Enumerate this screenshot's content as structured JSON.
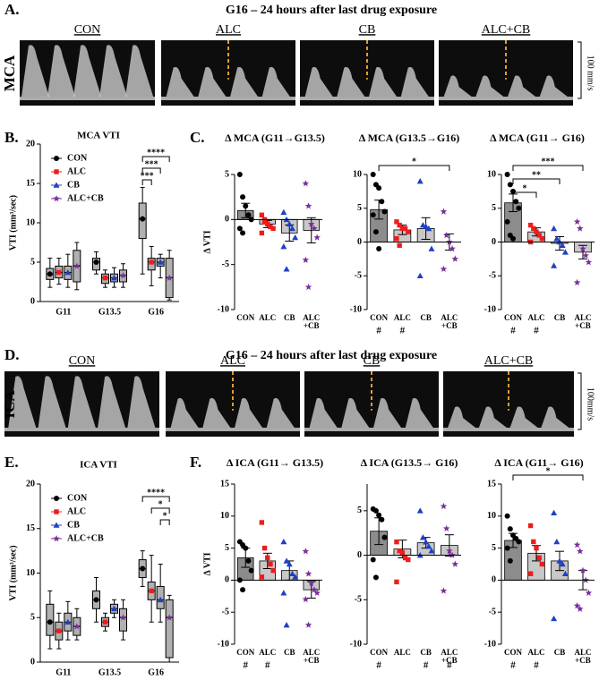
{
  "figure": {
    "A": {
      "letter": "A.",
      "title": "G16 – 24 hours after last drug exposure",
      "vessel": "MCA",
      "scale": "100 mm/s",
      "groups": [
        "CON",
        "ALC",
        "CB",
        "ALC+CB"
      ]
    },
    "D": {
      "letter": "D.",
      "title": "G16 – 24 hours after last drug exposure",
      "vessel": "ICA",
      "scale": "100mm/s",
      "groups": [
        "CON",
        "ALC",
        "CB",
        "ALC+CB"
      ]
    },
    "letters": {
      "B": "B.",
      "C": "C.",
      "E": "E.",
      "F": "F."
    }
  },
  "chart_data": [
    {
      "type": "box",
      "title": "MCA VTI",
      "ylabel": "VTI (mm³/sec)",
      "categories": [
        "G11",
        "G13.5",
        "G16"
      ],
      "series": [
        {
          "name": "CON",
          "color": "#000000",
          "marker": "circle",
          "values": [
            [
              1.8,
              2.8,
              3.5,
              4.2,
              5.5
            ],
            [
              3.5,
              4,
              5,
              5.5,
              6.3
            ],
            [
              3.5,
              8,
              10.5,
              12.5,
              14.5
            ]
          ]
        },
        {
          "name": "ALC",
          "color": "#ee1c1c",
          "marker": "square",
          "values": [
            [
              2.2,
              3,
              3.7,
              4.5,
              5.5
            ],
            [
              1.8,
              2.3,
              3,
              3.5,
              4
            ],
            [
              2,
              4,
              5,
              5.5,
              7
            ]
          ]
        },
        {
          "name": "CB",
          "color": "#1f3fc4",
          "marker": "triangle",
          "values": [
            [
              1.8,
              2.8,
              3.7,
              4.5,
              6
            ],
            [
              1.8,
              2.5,
              3,
              3.5,
              4.3
            ],
            [
              3,
              4.5,
              5,
              5.5,
              6
            ]
          ]
        },
        {
          "name": "ALC+CB",
          "color": "#7b2d9b",
          "marker": "star",
          "values": [
            [
              1.5,
              2.5,
              4.5,
              6.5,
              7.5
            ],
            [
              1.8,
              2.5,
              3.3,
              4,
              4.8
            ],
            [
              0.2,
              0.5,
              3,
              5.5,
              6.5
            ]
          ]
        }
      ],
      "ylim": [
        0,
        20
      ],
      "yticks": [
        0,
        5,
        10,
        15,
        20
      ],
      "brackets": [
        {
          "text": "***",
          "category": 2,
          "from": 0,
          "to": 1
        },
        {
          "text": "***",
          "category": 2,
          "from": 0,
          "to": 2
        },
        {
          "text": "****",
          "category": 2,
          "from": 0,
          "to": 3
        }
      ]
    },
    {
      "type": "bar_scatter",
      "title": "Δ MCA (G11→G13.5)",
      "ylabel": "Δ VTI",
      "categories": [
        "CON",
        "ALC",
        "CB",
        "ALC +CB"
      ],
      "values": [
        1,
        -0.5,
        -1.5,
        -1.2
      ],
      "errors": [
        0.8,
        0.4,
        0.9,
        1.4
      ],
      "points": [
        [
          5,
          2.5,
          1.5,
          0.5,
          0,
          -1,
          -1.5
        ],
        [
          0.5,
          0,
          -0.5,
          -0.8,
          -1,
          -1.5,
          -0.3
        ],
        [
          0.8,
          0,
          -0.5,
          -1,
          -2,
          -3,
          -5.5
        ],
        [
          4,
          1.5,
          -0.5,
          -1,
          -2,
          -4.5,
          -7.5
        ]
      ],
      "colors": [
        "#000000",
        "#ee1c1c",
        "#1f3fc4",
        "#7b2d9b"
      ],
      "bar_colors": [
        "#8c8c8c",
        "#c8c8c8",
        "#c8c8c8",
        "#c8c8c8"
      ],
      "markers": [
        "circle",
        "square",
        "triangle",
        "star"
      ],
      "ylim": [
        -10,
        5
      ],
      "yticks": [
        -10,
        -5,
        0,
        5
      ],
      "brackets": []
    },
    {
      "type": "bar_scatter",
      "title": "Δ MCA (G13.5→G16)",
      "categories": [
        "CON",
        "ALC",
        "CB",
        "ALC +CB"
      ],
      "values": [
        4.8,
        1.8,
        2,
        0
      ],
      "errors": [
        1.4,
        0.7,
        1.6,
        1.2
      ],
      "points": [
        [
          10,
          8.5,
          8,
          6,
          4.5,
          4,
          1.5,
          -1
        ],
        [
          3,
          2.5,
          2,
          2,
          1.5,
          0.5,
          -0.5
        ],
        [
          9,
          2.5,
          2.3,
          2,
          -1,
          -5
        ],
        [
          4.5,
          1,
          0,
          -1,
          -2.5,
          -4
        ]
      ],
      "colors": [
        "#000000",
        "#ee1c1c",
        "#1f3fc4",
        "#7b2d9b"
      ],
      "bar_colors": [
        "#8c8c8c",
        "#c8c8c8",
        "#c8c8c8",
        "#c8c8c8"
      ],
      "markers": [
        "circle",
        "square",
        "triangle",
        "star"
      ],
      "hash": [
        "#",
        "#",
        null,
        null
      ],
      "hash_color": "#2e9b2e",
      "ylim": [
        -10,
        10
      ],
      "yticks": [
        -10,
        -5,
        0,
        5,
        10
      ],
      "brackets": [
        {
          "text": "*",
          "from": 0,
          "to": 3
        }
      ]
    },
    {
      "type": "bar_scatter",
      "title": "Δ MCA (G11→ G16)",
      "categories": [
        "CON",
        "ALC",
        "CB",
        "ALC +CB"
      ],
      "values": [
        5.8,
        1.5,
        -0.2,
        -1.5
      ],
      "errors": [
        1.3,
        0.6,
        1,
        1
      ],
      "points": [
        [
          10,
          8.5,
          7.5,
          6,
          5,
          3,
          1,
          0.5
        ],
        [
          2.5,
          2,
          1.5,
          1,
          0.5,
          0
        ],
        [
          2,
          0.5,
          0,
          -0.5,
          -1.5,
          -3.5
        ],
        [
          3,
          2,
          -1,
          -2,
          -3,
          -6
        ]
      ],
      "colors": [
        "#000000",
        "#ee1c1c",
        "#1f3fc4",
        "#7b2d9b"
      ],
      "bar_colors": [
        "#8c8c8c",
        "#c8c8c8",
        "#c8c8c8",
        "#c8c8c8"
      ],
      "markers": [
        "circle",
        "square",
        "triangle",
        "star"
      ],
      "hash": [
        "#",
        "#",
        null,
        null
      ],
      "hash_color": "#2e9b2e",
      "ylim": [
        -10,
        10
      ],
      "yticks": [
        -10,
        -5,
        0,
        5,
        10
      ],
      "brackets": [
        {
          "text": "*",
          "from": 0,
          "to": 1
        },
        {
          "text": "**",
          "from": 0,
          "to": 2
        },
        {
          "text": "***",
          "from": 0,
          "to": 3
        }
      ]
    },
    {
      "type": "box",
      "title": "ICA VTI",
      "ylabel": "VTI (mm³/sec)",
      "categories": [
        "G11",
        "G13.5",
        "G16"
      ],
      "series": [
        {
          "name": "CON",
          "color": "#000000",
          "marker": "circle",
          "values": [
            [
              1.5,
              3,
              4.5,
              6.5,
              8
            ],
            [
              4.5,
              6,
              7,
              8,
              9.5
            ],
            [
              8.5,
              9.5,
              10.5,
              11.5,
              12.5
            ]
          ]
        },
        {
          "name": "ALC",
          "color": "#ee1c1c",
          "marker": "square",
          "values": [
            [
              1.5,
              2.5,
              3.5,
              4.5,
              5.5
            ],
            [
              3.5,
              4,
              4.5,
              5,
              5.5
            ],
            [
              4.5,
              7,
              8,
              9,
              12
            ]
          ]
        },
        {
          "name": "CB",
          "color": "#1f3fc4",
          "marker": "triangle",
          "values": [
            [
              2.5,
              3.5,
              4.5,
              5.5,
              6.8
            ],
            [
              5,
              5.5,
              6,
              6.5,
              7
            ],
            [
              4.5,
              6,
              7,
              8.5,
              11
            ]
          ]
        },
        {
          "name": "ALC+CB",
          "color": "#7b2d9b",
          "marker": "star",
          "values": [
            [
              2.5,
              3,
              4,
              5,
              6
            ],
            [
              2.5,
              3.5,
              5,
              6,
              7
            ],
            [
              0,
              0.5,
              5,
              7,
              7.5
            ]
          ]
        }
      ],
      "ylim": [
        0,
        20
      ],
      "yticks": [
        0,
        5,
        10,
        15,
        20
      ],
      "brackets": [
        {
          "text": "*",
          "category": 2,
          "from": 2,
          "to": 3
        },
        {
          "text": "*",
          "category": 2,
          "from": 1,
          "to": 3
        },
        {
          "text": "****",
          "category": 2,
          "from": 0,
          "to": 3
        }
      ]
    },
    {
      "type": "bar_scatter",
      "title": "Δ ICA (G11→ G13.5)",
      "ylabel": "Δ VTI",
      "categories": [
        "CON",
        "ALC",
        "CB",
        "ALC +CB"
      ],
      "values": [
        3.5,
        3,
        1.5,
        -1.5
      ],
      "errors": [
        1.5,
        1.2,
        1.5,
        1.3
      ],
      "points": [
        [
          6,
          5.5,
          5,
          3,
          1.5,
          0,
          -1.5
        ],
        [
          9,
          5,
          3.5,
          2.5,
          1.5,
          0.5
        ],
        [
          6,
          3,
          2.5,
          1,
          0.5,
          -2,
          -7
        ],
        [
          4.5,
          1,
          -0.5,
          -1.5,
          -2,
          -3,
          -7
        ]
      ],
      "colors": [
        "#000000",
        "#ee1c1c",
        "#1f3fc4",
        "#7b2d9b"
      ],
      "bar_colors": [
        "#8c8c8c",
        "#c8c8c8",
        "#c8c8c8",
        "#c8c8c8"
      ],
      "markers": [
        "circle",
        "square",
        "triangle",
        "star"
      ],
      "hash": [
        "#",
        "#",
        null,
        null
      ],
      "hash_color": "#2e9b2e",
      "ylim": [
        -10,
        15
      ],
      "yticks": [
        -10,
        -5,
        0,
        5,
        10,
        15
      ],
      "brackets": []
    },
    {
      "type": "bar_scatter",
      "title": "Δ ICA (G13.5→ G16)",
      "categories": [
        "CON",
        "ALC",
        "CB",
        "ALC +CB"
      ],
      "values": [
        2.7,
        0.7,
        1.4,
        1.1
      ],
      "errors": [
        1.5,
        1,
        0.6,
        1.2
      ],
      "points": [
        [
          5.2,
          5,
          4.5,
          4,
          2,
          -0.5,
          -2.5
        ],
        [
          1.5,
          0.5,
          0.3,
          -0.3,
          -0.5,
          -3
        ],
        [
          5,
          2,
          1.5,
          1,
          0.5,
          0
        ],
        [
          5.5,
          3,
          0.5,
          0,
          -1,
          -4
        ]
      ],
      "colors": [
        "#000000",
        "#ee1c1c",
        "#1f3fc4",
        "#7b2d9b"
      ],
      "bar_colors": [
        "#8c8c8c",
        "#c8c8c8",
        "#c8c8c8",
        "#c8c8c8"
      ],
      "markers": [
        "circle",
        "square",
        "triangle",
        "star"
      ],
      "hash": [
        "#",
        null,
        "#",
        "#"
      ],
      "hash_color": "#2e9b2e",
      "ylim": [
        -10,
        8
      ],
      "yticks": [
        -10,
        -5,
        0,
        5
      ],
      "brackets": []
    },
    {
      "type": "bar_scatter",
      "title": "Δ ICA (G11→ G16)",
      "categories": [
        "CON",
        "ALC",
        "CB",
        "ALC +CB"
      ],
      "values": [
        6.2,
        4.2,
        3,
        0
      ],
      "errors": [
        1.1,
        1.2,
        1.5,
        1.5
      ],
      "points": [
        [
          10,
          8,
          7,
          6.5,
          6,
          5,
          3
        ],
        [
          8.5,
          6,
          5,
          3.5,
          2.5,
          1
        ],
        [
          10.5,
          6,
          3,
          2.5,
          1,
          -6
        ],
        [
          5.5,
          4.5,
          1.5,
          0,
          -2,
          -4,
          -4.5
        ]
      ],
      "colors": [
        "#000000",
        "#ee1c1c",
        "#1f3fc4",
        "#7b2d9b"
      ],
      "bar_colors": [
        "#8c8c8c",
        "#c8c8c8",
        "#c8c8c8",
        "#c8c8c8"
      ],
      "markers": [
        "circle",
        "square",
        "triangle",
        "star"
      ],
      "hash": [
        "#",
        "#",
        null,
        null
      ],
      "hash_color": "#2e9b2e",
      "ylim": [
        -10,
        15
      ],
      "yticks": [
        -10,
        -5,
        0,
        5,
        10,
        15
      ],
      "brackets": [
        {
          "text": "*",
          "from": 0,
          "to": 3
        }
      ]
    }
  ]
}
